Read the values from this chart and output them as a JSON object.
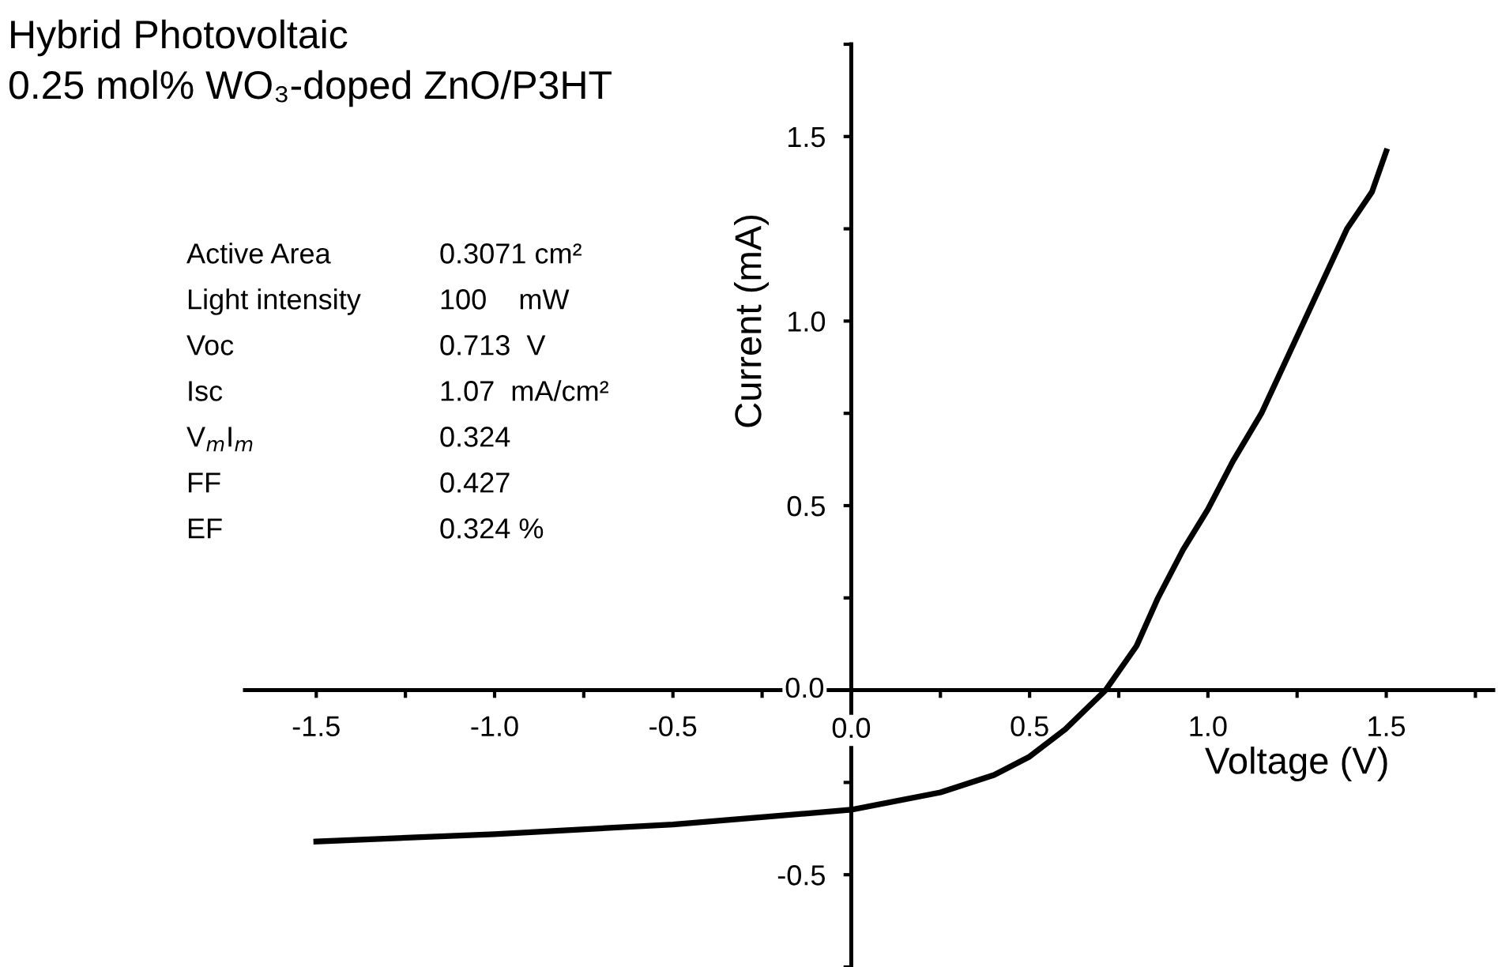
{
  "chart_data": {
    "type": "line",
    "title": "Hybrid Photovoltaic",
    "subtitle": "0.25 mol% WO₃-doped ZnO/P3HT",
    "xlabel": "Voltage (V)",
    "ylabel": "Current (mA)",
    "annotations": [
      "Active Area",
      "0.3071 cm²",
      "Light intensity",
      "100    mW",
      "Voc",
      "0.713  V",
      "Isc",
      "1.07  mA/cm²",
      "V$_{m}$I$_{m}$",
      "0.324",
      "FF",
      "0.427",
      "EF",
      "0.324 %"
    ],
    "x": [
      -1.5,
      -1.0,
      -0.5,
      0,
      0.25,
      0.4,
      0.5,
      0.6,
      0.713,
      0.8,
      0.86,
      0.93,
      1.0,
      1.07,
      1.15,
      1.27,
      1.39,
      1.46,
      1.5
    ],
    "series": [
      {
        "color": "#000000",
        "values": [
          -0.41,
          -0.39,
          -0.364,
          -0.324,
          -0.277,
          -0.23,
          -0.18,
          -0.106,
          0,
          0.12,
          0.25,
          0.38,
          0.49,
          0.62,
          0.75,
          1.0,
          1.25,
          1.35,
          1.46
        ]
      }
    ],
    "xlim": [
      -1.7,
      1.8
    ],
    "ylim": [
      -0.75,
      1.75
    ],
    "xticks": [
      {
        "value": -1.5,
        "label": "-1.5"
      },
      {
        "value": -1.25,
        "label": null
      },
      {
        "value": -1.0,
        "label": "-1.0"
      },
      {
        "value": -0.75,
        "label": null
      },
      {
        "value": -0.5,
        "label": "-0.5"
      },
      {
        "value": -0.25,
        "label": null
      },
      {
        "value": 0,
        "label": "0.0"
      },
      {
        "value": 0.25,
        "label": null
      },
      {
        "value": 0.5,
        "label": "0.5"
      },
      {
        "value": 0.75,
        "label": null
      },
      {
        "value": 1.0,
        "label": "1.0"
      },
      {
        "value": 1.25,
        "label": null
      },
      {
        "value": 1.5,
        "label": "1.5"
      },
      {
        "value": 1.75,
        "label": null
      }
    ],
    "yticks": [
      {
        "value": -0.75,
        "label": null
      },
      {
        "value": -0.5,
        "label": "-0.5"
      },
      {
        "value": -0.25,
        "label": null
      },
      {
        "value": 0,
        "label": "0.0"
      },
      {
        "value": 0.25,
        "label": null
      },
      {
        "value": 0.5,
        "label": "0.5"
      },
      {
        "value": 0.75,
        "label": null
      },
      {
        "value": 1.0,
        "label": "1.0"
      },
      {
        "value": 1.25,
        "label": null
      },
      {
        "value": 1.5,
        "label": "1.5"
      },
      {
        "value": 1.75,
        "label": null
      }
    ]
  }
}
